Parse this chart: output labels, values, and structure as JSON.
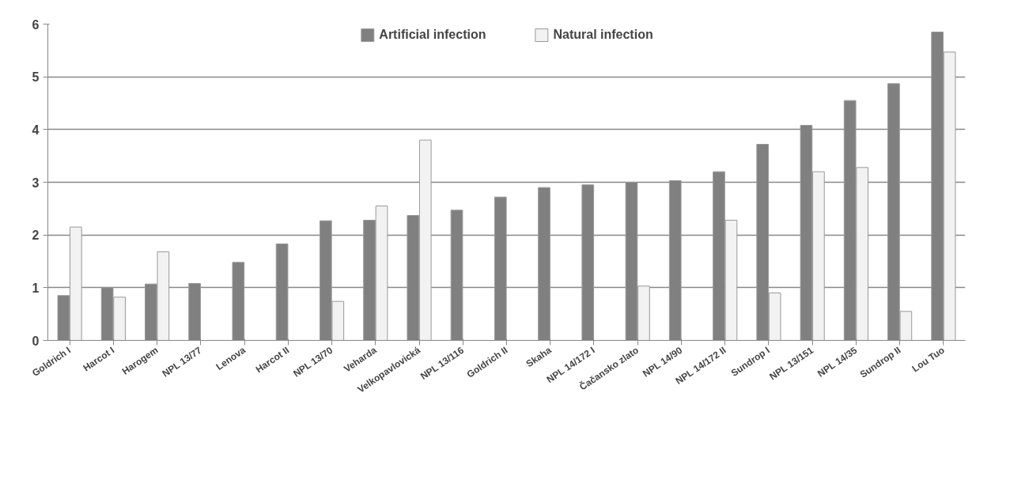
{
  "chart_data": {
    "type": "bar",
    "categories": [
      "Goldrich I",
      "Harcot I",
      "Harogem",
      "NPL 13/77",
      "Lenova",
      "Harcot II",
      "NPL 13/70",
      "Veharda",
      "Velkopavlovická",
      "NPL 13/116",
      "Goldrich II",
      "Skaha",
      "NPL 14/172 I",
      "Čačansko zlato",
      "NPL 14/90",
      "NPL 14/172 II",
      "Sundrop I",
      "NPL 13/151",
      "NPL 14/35",
      "Sundrop II",
      "Lou Tuo"
    ],
    "series": [
      {
        "name": "Artificial infection",
        "color": "#808080",
        "values": [
          0.85,
          1.0,
          1.07,
          1.08,
          1.48,
          1.83,
          2.27,
          2.28,
          2.37,
          2.47,
          2.72,
          2.9,
          2.95,
          3.0,
          3.03,
          3.2,
          3.72,
          4.08,
          4.55,
          4.87,
          5.85
        ]
      },
      {
        "name": "Natural infection",
        "color": "#f2f2f2",
        "values": [
          2.15,
          0.82,
          1.68,
          null,
          null,
          null,
          0.74,
          2.55,
          3.8,
          null,
          null,
          null,
          null,
          1.03,
          null,
          2.28,
          0.9,
          3.2,
          3.28,
          0.55,
          5.47
        ]
      }
    ],
    "ylim": [
      0,
      6
    ],
    "yticks": [
      0,
      1,
      2,
      3,
      4,
      5,
      6
    ],
    "grid": "y",
    "legend": "top"
  }
}
